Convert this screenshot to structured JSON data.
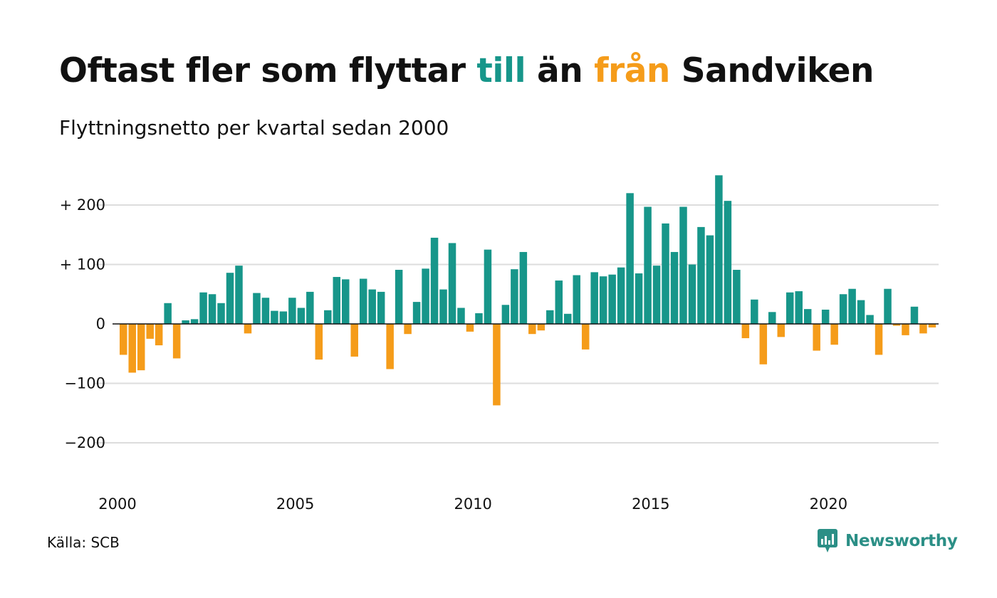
{
  "title": {
    "part1": "Oftast fler som flyttar ",
    "till": "till",
    "part2": " än ",
    "fran": "från",
    "part3": " Sandviken"
  },
  "subtitle": "Flyttningsnetto per kvartal sedan 2000",
  "source": "Källa: SCB",
  "brand": {
    "name": "Newsworthy",
    "icon": "newsworthy-logo-icon"
  },
  "colors": {
    "positive": "#17968a",
    "negative": "#f59c1a",
    "grid": "#dddddd",
    "title_till": "#17968a",
    "title_fran": "#f59c1a"
  },
  "chart_data": {
    "type": "bar",
    "title": "Oftast fler som flyttar till än från Sandviken",
    "subtitle": "Flyttningsnetto per kvartal sedan 2000",
    "xlabel": "",
    "ylabel": "",
    "x_start": "2000 Q1",
    "x_ticks": [
      "2000",
      "2005",
      "2010",
      "2015",
      "2020"
    ],
    "y_ticks": [
      {
        "value": 200,
        "label": "+ 200"
      },
      {
        "value": 100,
        "label": "+ 100"
      },
      {
        "value": 0,
        "label": "0"
      },
      {
        "value": -100,
        "label": "−100"
      },
      {
        "value": -200,
        "label": "−200"
      }
    ],
    "ylim": [
      -280,
      270
    ],
    "grid": true,
    "legend": "none",
    "series": [
      {
        "values": [
          -52,
          -82,
          -78,
          -25,
          -36,
          35,
          -58,
          6,
          8,
          53,
          50,
          35,
          86,
          98,
          -16,
          52,
          44,
          22,
          21,
          44,
          27,
          54,
          -60,
          23,
          79,
          75,
          -55,
          76,
          58,
          54,
          -76,
          91,
          -17,
          37,
          93,
          145,
          58,
          136,
          27,
          -13,
          18,
          125,
          -137,
          32,
          92,
          121,
          -17,
          -11,
          23,
          73,
          17,
          82,
          -43,
          87,
          80,
          83,
          95,
          220,
          85,
          197,
          98,
          169,
          121,
          197,
          100,
          163,
          149,
          250,
          207,
          91,
          -24,
          41,
          -68,
          20,
          -22,
          53,
          55,
          25,
          -45,
          24,
          -35,
          50,
          59,
          40,
          15,
          -52,
          59,
          -3,
          -19,
          29,
          -16,
          -6
        ]
      }
    ]
  }
}
